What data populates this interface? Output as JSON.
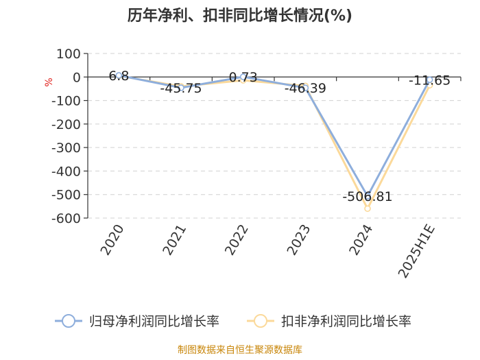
{
  "chart_data": {
    "type": "line",
    "title": "历年净利、扣非同比增长情况(%)",
    "ylabel": "%",
    "xlabel": "",
    "categories": [
      "2020",
      "2021",
      "2022",
      "2023",
      "2024",
      "2025H1E"
    ],
    "ylim": [
      -600,
      100
    ],
    "yticks": [
      100,
      0,
      -100,
      -200,
      -300,
      -400,
      -500,
      -600
    ],
    "grid": true,
    "legend_position": "bottom",
    "series": [
      {
        "name": "归母净利润同比增长率",
        "values": [
          6.8,
          -45.75,
          0.73,
          -46.39,
          -506.81,
          -11.65
        ],
        "labels": [
          "6.8",
          "-45.75",
          "0.73",
          "-46.39",
          "-506.81",
          "-11.65"
        ],
        "color": "#8eaedc"
      },
      {
        "name": "扣非净利润同比增长率",
        "values": [
          5.0,
          -40.0,
          -14.0,
          -38.0,
          -560.0,
          -35.0
        ],
        "labels": [],
        "color": "#fbd99a"
      }
    ],
    "source": "制图数据来自恒生聚源数据库"
  }
}
